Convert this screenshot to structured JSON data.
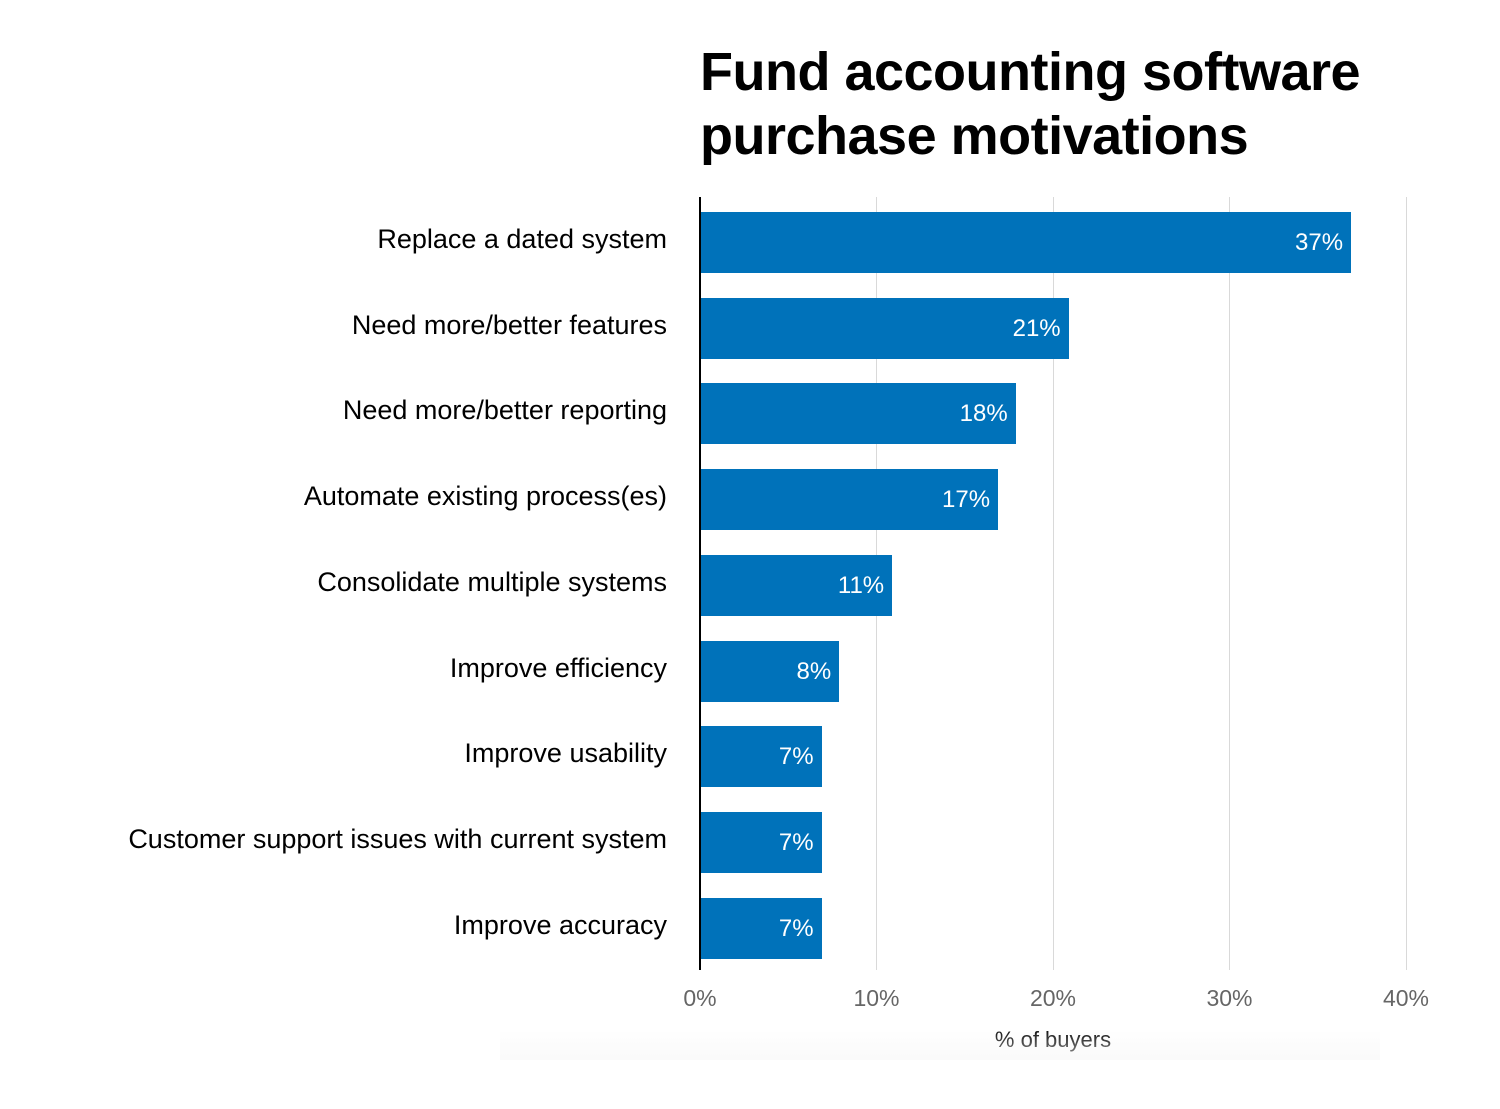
{
  "chart_data": {
    "type": "bar",
    "orientation": "horizontal",
    "title": "Fund accounting software purchase motivations",
    "xlabel": "% of buyers",
    "ylabel": "",
    "categories": [
      "Replace a dated system",
      "Need more/better features",
      "Need more/better reporting",
      "Automate existing process(es)",
      "Consolidate multiple systems",
      "Improve efficiency",
      "Improve usability",
      "Customer support issues with current system",
      "Improve accuracy"
    ],
    "values": [
      37,
      21,
      18,
      17,
      11,
      8,
      7,
      7,
      7
    ],
    "value_labels": [
      "37%",
      "21%",
      "18%",
      "17%",
      "11%",
      "8%",
      "7%",
      "7%",
      "7%"
    ],
    "xlim": [
      0,
      40
    ],
    "x_ticks": [
      "0%",
      "10%",
      "20%",
      "30%",
      "40%"
    ],
    "grid": true,
    "legend": "none",
    "bar_color": "#0072BA"
  },
  "title_line1": "Fund accounting software",
  "title_line2": "purchase motivations"
}
